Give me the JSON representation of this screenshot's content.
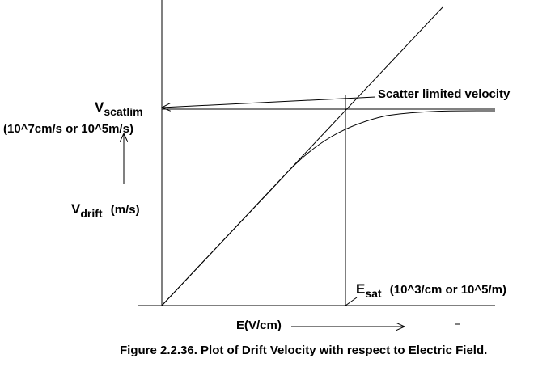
{
  "labels": {
    "vscat_main": "V",
    "vscat_sub": "scatlim",
    "vscat_units": "(10^7cm/s or 10^5m/s)",
    "vdrift_main": "V",
    "vdrift_sub": "drift",
    "vdrift_units": "(m/s)",
    "scatter_limited": "Scatter limited velocity",
    "esat_main": "E",
    "esat_sub": "sat",
    "esat_units": "(10^3/cm or 10^5/m)",
    "x_axis": "E(V/cm)",
    "caption": "Figure 2.2.36. Plot of Drift Velocity with respect to Electric Field."
  }
}
